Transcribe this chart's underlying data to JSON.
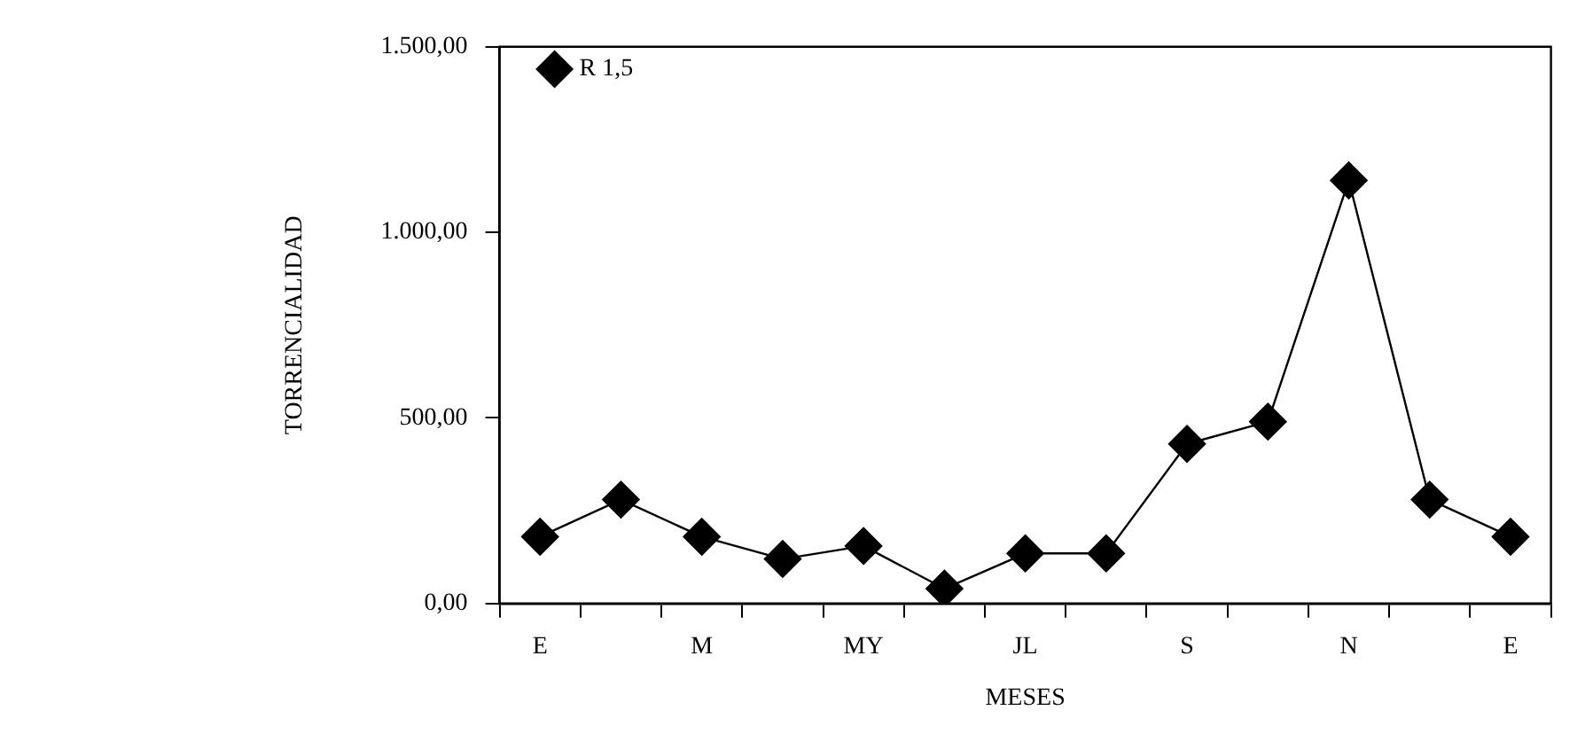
{
  "chart_data": {
    "type": "line",
    "xlabel": "MESES",
    "ylabel": "TORRENCIALIDAD",
    "categories": [
      "E",
      null,
      "M",
      null,
      "MY",
      null,
      "JL",
      null,
      "S",
      null,
      "N",
      null,
      "E"
    ],
    "series": [
      {
        "name": "R 1,5",
        "color": "#000000",
        "values": [
          180,
          280,
          180,
          120,
          155,
          40,
          135,
          135,
          430,
          490,
          1140,
          280,
          180
        ]
      }
    ],
    "ylim": [
      0,
      1500
    ],
    "yticks": [
      {
        "value": 0,
        "label": "0,00"
      },
      {
        "value": 500,
        "label": "500,00"
      },
      {
        "value": 1000,
        "label": "1.000,00"
      },
      {
        "value": 1500,
        "label": "1.500,00"
      }
    ],
    "grid": false,
    "legend": "top left",
    "marker": "diamond",
    "line_style": "solid"
  }
}
